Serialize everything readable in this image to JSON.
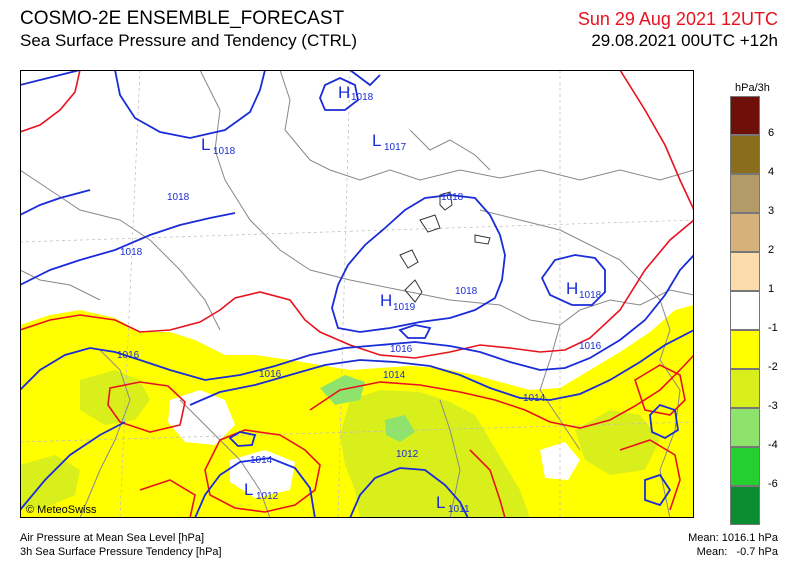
{
  "header": {
    "title": "COSMO-2E ENSEMBLE_FORECAST",
    "subtitle": "Sea Surface Pressure and Tendency (CTRL)",
    "valid_time": "Sun 29 Aug 2021 12UTC",
    "run_time": "29.08.2021 00UTC +12h"
  },
  "legend": {
    "title": "hPa/3h",
    "labels": [
      "6",
      "4",
      "3",
      "2",
      "1",
      "-1",
      "-2",
      "-3",
      "-4",
      "-6"
    ],
    "colors": [
      "#6e0f0a",
      "#8a6e1d",
      "#b39a67",
      "#d6b179",
      "#fcdcaa",
      "#ffffff",
      "#ffff00",
      "#d9ef1c",
      "#8ee36c",
      "#24d02f",
      "#0c8d32"
    ]
  },
  "map": {
    "pressure_centers": [
      {
        "letter": "H",
        "value": "1018"
      },
      {
        "letter": "L",
        "value": "1018"
      },
      {
        "letter": "L",
        "value": "1017"
      },
      {
        "letter": "H",
        "value": "1019"
      },
      {
        "letter": "H",
        "value": "1018"
      },
      {
        "letter": "L",
        "value": "1012"
      },
      {
        "letter": "L",
        "value": "1011"
      }
    ],
    "isobar_labels": [
      "1018",
      "1018",
      "1018",
      "1018",
      "1016",
      "1016",
      "1016",
      "1016",
      "1014",
      "1014",
      "1014",
      "1012"
    ]
  },
  "copyright": "© MeteoSwiss",
  "footer": {
    "left_line1": "Air Pressure at Mean Sea Level [hPa]",
    "left_line2": "3h Sea Surface Pressure Tendency [hPa]",
    "right_line1": "Mean: 1016.1 hPa",
    "right_line2": "Mean:   -0.7 hPa"
  }
}
